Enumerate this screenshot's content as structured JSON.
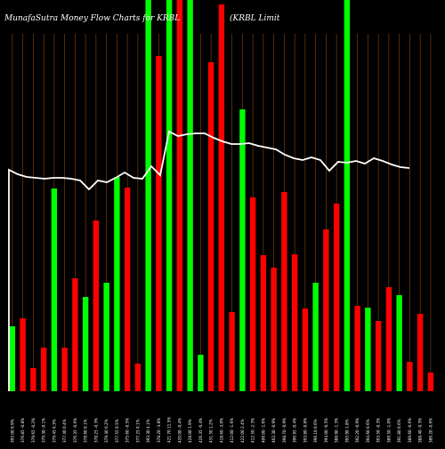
{
  "chart_data": {
    "type": "bar",
    "title": "MunafaSutra  Money Flow  Charts for KRBL",
    "subtitle": "(KRBL  Limit",
    "colors": {
      "up": "#00ff00",
      "down": "#ff0000",
      "line": "#ffffff",
      "grid": "#8b4513",
      "background": "#000000"
    },
    "ylim": [
      0,
      440
    ],
    "bars": [
      {
        "value": 73,
        "color": "up"
      },
      {
        "value": 82,
        "color": "down"
      },
      {
        "value": 26,
        "color": "down"
      },
      {
        "value": 49,
        "color": "down"
      },
      {
        "value": 228,
        "color": "up"
      },
      {
        "value": 49,
        "color": "down"
      },
      {
        "value": 127,
        "color": "down"
      },
      {
        "value": 106,
        "color": "up"
      },
      {
        "value": 192,
        "color": "down"
      },
      {
        "value": 122,
        "color": "up"
      },
      {
        "value": 241,
        "color": "up"
      },
      {
        "value": 229,
        "color": "down"
      },
      {
        "value": 31,
        "color": "down"
      },
      {
        "value": 440,
        "color": "up"
      },
      {
        "value": 377,
        "color": "down"
      },
      {
        "value": 440,
        "color": "up"
      },
      {
        "value": 440,
        "color": "down"
      },
      {
        "value": 440,
        "color": "up"
      },
      {
        "value": 41,
        "color": "up"
      },
      {
        "value": 370,
        "color": "down"
      },
      {
        "value": 435,
        "color": "down"
      },
      {
        "value": 89,
        "color": "down"
      },
      {
        "value": 317,
        "color": "up"
      },
      {
        "value": 218,
        "color": "down"
      },
      {
        "value": 153,
        "color": "down"
      },
      {
        "value": 139,
        "color": "down"
      },
      {
        "value": 224,
        "color": "down"
      },
      {
        "value": 154,
        "color": "down"
      },
      {
        "value": 93,
        "color": "down"
      },
      {
        "value": 122,
        "color": "up"
      },
      {
        "value": 182,
        "color": "down"
      },
      {
        "value": 211,
        "color": "down"
      },
      {
        "value": 440,
        "color": "up"
      },
      {
        "value": 96,
        "color": "down"
      },
      {
        "value": 94,
        "color": "up"
      },
      {
        "value": 79,
        "color": "down"
      },
      {
        "value": 117,
        "color": "down"
      },
      {
        "value": 108,
        "color": "up"
      },
      {
        "value": 33,
        "color": "down"
      },
      {
        "value": 87,
        "color": "down"
      },
      {
        "value": 21,
        "color": "down"
      }
    ],
    "line": [
      249,
      244,
      241,
      240,
      239,
      240,
      240,
      239,
      237,
      227,
      237,
      235,
      240,
      246,
      240,
      239,
      253,
      243,
      292,
      287,
      289,
      290,
      290,
      285,
      281,
      278,
      278,
      279,
      276,
      274,
      272,
      266,
      262,
      260,
      263,
      260,
      248,
      258,
      257,
      259,
      256,
      262,
      259,
      255,
      252,
      251
    ],
    "x_tick_labels": [
      "395.00 0.9%",
      "376.85 -0.8%",
      "379.65 -0.2%",
      "379.30 -0.1%",
      "379.45 0.3%",
      "377.40 0.4%",
      "376.35 -0.6%",
      "378.60 0.1%",
      "378.25 -0.3%",
      "379.40 0.2%",
      "377.55 0.5%",
      "375.60 -0.5%",
      "377.25 0.1%",
      "393.30 4.1%",
      "378.20 -3.8%",
      "421.70 11.5%",
      "420.00 -0.4%",
      "428.00 1.9%",
      "426.35 -0.4%",
      "431.50 1.2%",
      "418.60 -3.0%",
      "412.00 -1.6%",
      "422.00 2.4%",
      "412.50 -2.3%",
      "406.00 -1.6%",
      "402.30 -0.9%",
      "398.70 -0.9%",
      "396.95 -0.4%",
      "393.80 -0.8%",
      "396.10 0.6%",
      "394.00 -0.5%",
      "388.90 -1.3%",
      "395.90 1.8%",
      "392.20 -0.9%",
      "394.60 0.6%",
      "393.50 -0.3%",
      "389.50 -1.0%",
      "391.80 0.6%",
      "389.60 -0.6%",
      "388.40 -0.3%",
      "386.20 -0.6%"
    ]
  }
}
